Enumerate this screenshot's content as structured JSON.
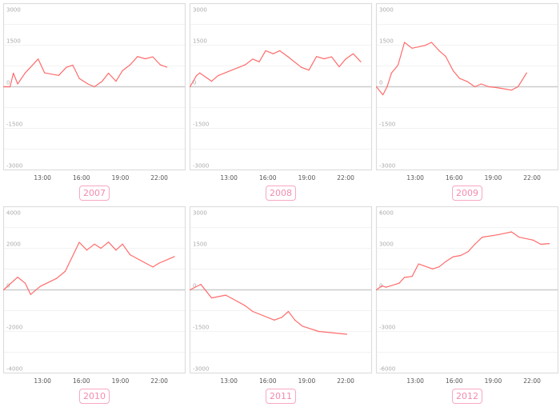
{
  "colors": {
    "line": "#ff6b6b",
    "button": "#f28cab",
    "zero_line": "#cccccc",
    "grid": "#f2f2f2",
    "frame": "#dddddd"
  },
  "chart_data": [
    {
      "type": "line",
      "label": "2007",
      "ylim": [
        -3000,
        3000
      ],
      "yticks": [
        3000,
        1500,
        0,
        -1500,
        -3000
      ],
      "xlim": [
        "10:00",
        "24:00"
      ],
      "xticks": [
        "13:00",
        "16:00",
        "19:00",
        "22:00"
      ],
      "grid": true,
      "points": [
        [
          "10:00",
          0
        ],
        [
          "10:30",
          0
        ],
        [
          "10:45",
          490
        ],
        [
          "11:05",
          100
        ],
        [
          "11:40",
          500
        ],
        [
          "12:40",
          1000
        ],
        [
          "13:10",
          500
        ],
        [
          "14:15",
          410
        ],
        [
          "14:50",
          700
        ],
        [
          "15:20",
          780
        ],
        [
          "15:50",
          300
        ],
        [
          "16:30",
          100
        ],
        [
          "17:00",
          0
        ],
        [
          "17:35",
          190
        ],
        [
          "18:05",
          490
        ],
        [
          "18:40",
          200
        ],
        [
          "19:10",
          580
        ],
        [
          "19:45",
          790
        ],
        [
          "20:20",
          1090
        ],
        [
          "20:55",
          1010
        ],
        [
          "21:30",
          1080
        ],
        [
          "22:05",
          790
        ],
        [
          "22:35",
          710
        ]
      ]
    },
    {
      "type": "line",
      "label": "2008",
      "ylim": [
        -3000,
        3000
      ],
      "yticks": [
        3000,
        1500,
        0,
        -1500,
        -3000
      ],
      "xlim": [
        "10:00",
        "24:00"
      ],
      "xticks": [
        "13:00",
        "16:00",
        "19:00",
        "22:00"
      ],
      "grid": true,
      "points": [
        [
          "10:00",
          0
        ],
        [
          "10:30",
          400
        ],
        [
          "10:45",
          500
        ],
        [
          "11:40",
          200
        ],
        [
          "12:10",
          400
        ],
        [
          "14:15",
          790
        ],
        [
          "14:50",
          1000
        ],
        [
          "15:20",
          900
        ],
        [
          "15:50",
          1300
        ],
        [
          "16:25",
          1190
        ],
        [
          "16:55",
          1300
        ],
        [
          "17:35",
          1070
        ],
        [
          "18:35",
          700
        ],
        [
          "19:10",
          600
        ],
        [
          "19:45",
          1090
        ],
        [
          "20:20",
          1010
        ],
        [
          "20:55",
          1080
        ],
        [
          "21:30",
          720
        ],
        [
          "22:00",
          1000
        ],
        [
          "22:35",
          1190
        ],
        [
          "23:10",
          900
        ]
      ]
    },
    {
      "type": "line",
      "label": "2009",
      "ylim": [
        -3000,
        3000
      ],
      "yticks": [
        3000,
        1500,
        0,
        -1500,
        -3000
      ],
      "xlim": [
        "10:00",
        "24:00"
      ],
      "xticks": [
        "13:00",
        "16:00",
        "19:00",
        "22:00"
      ],
      "grid": true,
      "points": [
        [
          "10:00",
          0
        ],
        [
          "10:30",
          -290
        ],
        [
          "10:50",
          10
        ],
        [
          "11:10",
          500
        ],
        [
          "11:40",
          780
        ],
        [
          "12:10",
          1600
        ],
        [
          "12:45",
          1390
        ],
        [
          "13:45",
          1490
        ],
        [
          "14:15",
          1600
        ],
        [
          "14:50",
          1300
        ],
        [
          "15:20",
          1100
        ],
        [
          "15:55",
          580
        ],
        [
          "16:25",
          300
        ],
        [
          "17:00",
          190
        ],
        [
          "17:35",
          0
        ],
        [
          "18:05",
          100
        ],
        [
          "18:40",
          0
        ],
        [
          "19:15",
          -30
        ],
        [
          "20:25",
          -120
        ],
        [
          "20:55",
          0
        ],
        [
          "21:35",
          500
        ]
      ]
    },
    {
      "type": "line",
      "label": "2010",
      "ylim": [
        -4000,
        4000
      ],
      "yticks": [
        4000,
        2000,
        0,
        -2000,
        -4000
      ],
      "xlim": [
        "10:00",
        "24:00"
      ],
      "xticks": [
        "13:00",
        "16:00",
        "19:00",
        "22:00"
      ],
      "grid": true,
      "points": [
        [
          "10:00",
          0
        ],
        [
          "11:05",
          610
        ],
        [
          "11:40",
          320
        ],
        [
          "12:05",
          -220
        ],
        [
          "12:50",
          170
        ],
        [
          "14:05",
          550
        ],
        [
          "14:45",
          890
        ],
        [
          "15:50",
          2290
        ],
        [
          "16:25",
          1910
        ],
        [
          "17:00",
          2200
        ],
        [
          "17:30",
          2000
        ],
        [
          "18:05",
          2300
        ],
        [
          "18:40",
          1910
        ],
        [
          "19:10",
          2200
        ],
        [
          "19:45",
          1690
        ],
        [
          "21:30",
          1100
        ],
        [
          "22:00",
          1290
        ],
        [
          "23:10",
          1600
        ]
      ]
    },
    {
      "type": "line",
      "label": "2011",
      "ylim": [
        -3000,
        3000
      ],
      "yticks": [
        3000,
        1500,
        0,
        -1500,
        -3000
      ],
      "xlim": [
        "10:00",
        "24:00"
      ],
      "xticks": [
        "13:00",
        "16:00",
        "19:00",
        "22:00"
      ],
      "grid": true,
      "points": [
        [
          "10:00",
          0
        ],
        [
          "10:50",
          200
        ],
        [
          "11:40",
          -290
        ],
        [
          "12:45",
          -190
        ],
        [
          "13:10",
          -290
        ],
        [
          "14:15",
          -570
        ],
        [
          "14:50",
          -780
        ],
        [
          "16:30",
          -1090
        ],
        [
          "17:05",
          -990
        ],
        [
          "17:35",
          -780
        ],
        [
          "18:05",
          -1090
        ],
        [
          "18:40",
          -1310
        ],
        [
          "19:55",
          -1500
        ],
        [
          "22:05",
          -1600
        ]
      ]
    },
    {
      "type": "line",
      "label": "2012",
      "ylim": [
        -6000,
        6000
      ],
      "yticks": [
        6000,
        3000,
        0,
        -3000,
        -6000
      ],
      "xlim": [
        "10:00",
        "24:00"
      ],
      "xticks": [
        "13:00",
        "16:00",
        "19:00",
        "22:00"
      ],
      "grid": true,
      "points": [
        [
          "10:00",
          0
        ],
        [
          "10:25",
          290
        ],
        [
          "10:45",
          190
        ],
        [
          "11:45",
          480
        ],
        [
          "12:10",
          900
        ],
        [
          "12:45",
          970
        ],
        [
          "13:15",
          1870
        ],
        [
          "14:20",
          1510
        ],
        [
          "14:50",
          1660
        ],
        [
          "15:20",
          2030
        ],
        [
          "15:55",
          2390
        ],
        [
          "16:30",
          2480
        ],
        [
          "17:05",
          2770
        ],
        [
          "17:35",
          3290
        ],
        [
          "18:10",
          3800
        ],
        [
          "19:20",
          3970
        ],
        [
          "20:25",
          4180
        ],
        [
          "21:00",
          3800
        ],
        [
          "22:05",
          3590
        ],
        [
          "22:40",
          3290
        ],
        [
          "23:20",
          3340
        ]
      ]
    }
  ]
}
